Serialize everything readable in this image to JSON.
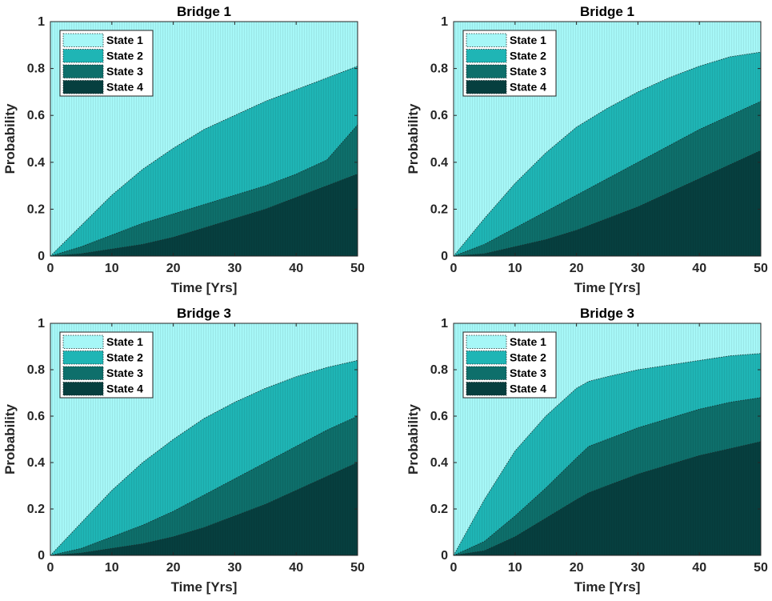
{
  "colors": {
    "state1": "#a6f7f7",
    "state2": "#1fb5b5",
    "state3": "#0e6f6b",
    "state4": "#063f3f",
    "axis": "#262626",
    "background": "#ffffff"
  },
  "chart_data": [
    {
      "type": "area",
      "stacked": true,
      "title": "Bridge 1",
      "xlabel": "Time [Yrs]",
      "ylabel": "Probability",
      "xlim": [
        0,
        50
      ],
      "ylim": [
        0,
        1
      ],
      "xticks": [
        "0",
        "10",
        "20",
        "30",
        "40",
        "50"
      ],
      "yticks": [
        "0",
        "0.2",
        "0.4",
        "0.6",
        "0.8",
        "1"
      ],
      "legend": {
        "placement": "top-left",
        "entries": [
          "State 1",
          "State 2",
          "State 3",
          "State 4"
        ]
      },
      "x": [
        0,
        5,
        10,
        15,
        20,
        25,
        30,
        35,
        40,
        45,
        50
      ],
      "series": [
        {
          "name": "State 4",
          "values": [
            0,
            0.01,
            0.03,
            0.05,
            0.08,
            0.12,
            0.16,
            0.2,
            0.25,
            0.3,
            0.35
          ]
        },
        {
          "name": "State 3",
          "values": [
            0,
            0.04,
            0.09,
            0.14,
            0.18,
            0.22,
            0.26,
            0.3,
            0.35,
            0.41,
            0.56
          ]
        },
        {
          "name": "State 2",
          "values": [
            0,
            0.13,
            0.26,
            0.37,
            0.46,
            0.54,
            0.6,
            0.66,
            0.71,
            0.76,
            0.81
          ]
        },
        {
          "name": "State 1",
          "values": [
            1,
            1,
            1,
            1,
            1,
            1,
            1,
            1,
            1,
            1,
            1
          ]
        }
      ]
    },
    {
      "type": "area",
      "stacked": true,
      "title": "Bridge 1",
      "xlabel": "Time [Yrs]",
      "ylabel": "Probability",
      "xlim": [
        0,
        50
      ],
      "ylim": [
        0,
        1
      ],
      "xticks": [
        "0",
        "10",
        "20",
        "30",
        "40",
        "50"
      ],
      "yticks": [
        "0",
        "0.2",
        "0.4",
        "0.6",
        "0.8",
        "1"
      ],
      "legend": {
        "placement": "top-left",
        "entries": [
          "State 1",
          "State 2",
          "State 3",
          "State 4"
        ]
      },
      "x": [
        0,
        5,
        10,
        15,
        20,
        25,
        30,
        35,
        40,
        45,
        50
      ],
      "series": [
        {
          "name": "State 4",
          "values": [
            0,
            0.01,
            0.04,
            0.07,
            0.11,
            0.16,
            0.21,
            0.27,
            0.33,
            0.39,
            0.45
          ]
        },
        {
          "name": "State 3",
          "values": [
            0,
            0.05,
            0.12,
            0.19,
            0.26,
            0.33,
            0.4,
            0.47,
            0.54,
            0.6,
            0.66
          ]
        },
        {
          "name": "State 2",
          "values": [
            0,
            0.16,
            0.31,
            0.44,
            0.55,
            0.63,
            0.7,
            0.76,
            0.81,
            0.85,
            0.87
          ]
        },
        {
          "name": "State 1",
          "values": [
            1,
            1,
            1,
            1,
            1,
            1,
            1,
            1,
            1,
            1,
            1
          ]
        }
      ]
    },
    {
      "type": "area",
      "stacked": true,
      "title": "Bridge 3",
      "xlabel": "Time [Yrs]",
      "ylabel": "Probability",
      "xlim": [
        0,
        50
      ],
      "ylim": [
        0,
        1
      ],
      "xticks": [
        "0",
        "10",
        "20",
        "30",
        "40",
        "50"
      ],
      "yticks": [
        "0",
        "0.2",
        "0.4",
        "0.6",
        "0.8",
        "1"
      ],
      "legend": {
        "placement": "top-left",
        "entries": [
          "State 1",
          "State 2",
          "State 3",
          "State 4"
        ]
      },
      "x": [
        0,
        5,
        10,
        15,
        20,
        25,
        30,
        35,
        40,
        45,
        50
      ],
      "series": [
        {
          "name": "State 4",
          "values": [
            0,
            0.01,
            0.03,
            0.05,
            0.08,
            0.12,
            0.17,
            0.22,
            0.28,
            0.34,
            0.4
          ]
        },
        {
          "name": "State 3",
          "values": [
            0,
            0.03,
            0.08,
            0.13,
            0.19,
            0.26,
            0.33,
            0.4,
            0.47,
            0.54,
            0.6
          ]
        },
        {
          "name": "State 2",
          "values": [
            0,
            0.14,
            0.28,
            0.4,
            0.5,
            0.59,
            0.66,
            0.72,
            0.77,
            0.81,
            0.84
          ]
        },
        {
          "name": "State 1",
          "values": [
            1,
            1,
            1,
            1,
            1,
            1,
            1,
            1,
            1,
            1,
            1
          ]
        }
      ]
    },
    {
      "type": "area",
      "stacked": true,
      "title": "Bridge 3",
      "xlabel": "Time [Yrs]",
      "ylabel": "Probability",
      "xlim": [
        0,
        50
      ],
      "ylim": [
        0,
        1
      ],
      "xticks": [
        "0",
        "10",
        "20",
        "30",
        "40",
        "50"
      ],
      "yticks": [
        "0",
        "0.2",
        "0.4",
        "0.6",
        "0.8",
        "1"
      ],
      "legend": {
        "placement": "top-left",
        "entries": [
          "State 1",
          "State 2",
          "State 3",
          "State 4"
        ]
      },
      "x": [
        0,
        5,
        10,
        15,
        20,
        22,
        25,
        30,
        35,
        40,
        45,
        50
      ],
      "series": [
        {
          "name": "State 4",
          "values": [
            0,
            0.02,
            0.08,
            0.16,
            0.24,
            0.27,
            0.3,
            0.35,
            0.39,
            0.43,
            0.46,
            0.49
          ]
        },
        {
          "name": "State 3",
          "values": [
            0,
            0.06,
            0.17,
            0.29,
            0.42,
            0.47,
            0.5,
            0.55,
            0.59,
            0.63,
            0.66,
            0.68
          ]
        },
        {
          "name": "State 2",
          "values": [
            0,
            0.24,
            0.45,
            0.6,
            0.72,
            0.75,
            0.77,
            0.8,
            0.82,
            0.84,
            0.86,
            0.87
          ]
        },
        {
          "name": "State 1",
          "values": [
            1,
            1,
            1,
            1,
            1,
            1,
            1,
            1,
            1,
            1,
            1,
            1
          ]
        }
      ]
    }
  ]
}
